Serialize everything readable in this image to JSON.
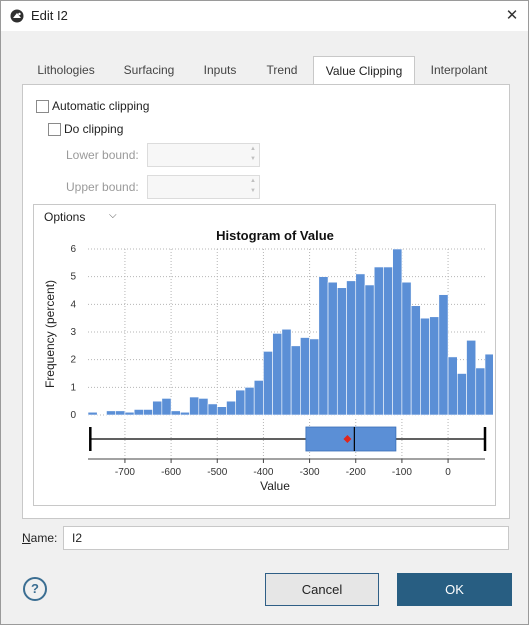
{
  "window": {
    "title": "Edit I2",
    "close_glyph": "✕",
    "icon": "leapfrog-app-icon"
  },
  "tabs": [
    {
      "label": "Lithologies",
      "active": false
    },
    {
      "label": "Surfacing",
      "active": false
    },
    {
      "label": "Inputs",
      "active": false
    },
    {
      "label": "Trend",
      "active": false
    },
    {
      "label": "Value Clipping",
      "active": true
    },
    {
      "label": "Interpolant",
      "active": false
    }
  ],
  "clipping": {
    "automatic_label": "Automatic clipping",
    "automatic_checked": false,
    "do_label": "Do clipping",
    "do_checked": false,
    "lower_label": "Lower bound:",
    "lower_value": "",
    "upper_label": "Upper bound:",
    "upper_value": ""
  },
  "options_label": "Options",
  "chart_data": {
    "type": "bar",
    "title": "Histogram of Value",
    "xlabel": "Value",
    "ylabel": "Frequency (percent)",
    "xlim": [
      -780,
      80
    ],
    "ylim": [
      0,
      6
    ],
    "x_ticks": [
      "-700",
      "-600",
      "-500",
      "-400",
      "-300",
      "-200",
      "-100",
      "0"
    ],
    "x_tick_values": [
      -700,
      -600,
      -500,
      -400,
      -300,
      -200,
      -100,
      0
    ],
    "y_ticks": [
      "6",
      "5",
      "4",
      "3",
      "2",
      "1",
      "0"
    ],
    "y_tick_values": [
      6,
      5,
      4,
      3,
      2,
      1,
      0
    ],
    "grid": true,
    "bin_start": -780,
    "bin_width": 20,
    "values": [
      0.1,
      0.0,
      0.15,
      0.15,
      0.1,
      0.2,
      0.2,
      0.5,
      0.6,
      0.15,
      0.1,
      0.65,
      0.6,
      0.4,
      0.3,
      0.5,
      0.9,
      1.0,
      1.25,
      2.3,
      2.95,
      3.1,
      2.5,
      2.8,
      2.75,
      5.0,
      4.8,
      4.6,
      4.85,
      5.1,
      4.7,
      5.35,
      5.35,
      6.0,
      4.8,
      3.95,
      3.5,
      3.55,
      4.35,
      2.1,
      1.5,
      2.7,
      1.7,
      2.2,
      0.4
    ],
    "boxplot": {
      "min": -775,
      "q1": -308,
      "median": -203,
      "mean": -218,
      "q3": -113,
      "max": 80
    },
    "bar_color": "#5b8fd6",
    "mean_color": "#e0261c"
  },
  "name_field": {
    "label": "Name:",
    "value": "I2"
  },
  "buttons": {
    "cancel": "Cancel",
    "ok": "OK",
    "help": "?"
  }
}
